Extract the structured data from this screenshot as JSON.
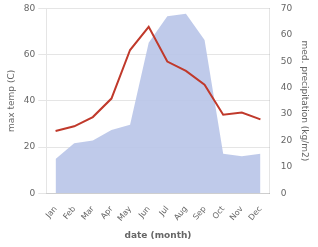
{
  "chart_data": {
    "type": "line",
    "categories": [
      "Jan",
      "Feb",
      "Mar",
      "Apr",
      "May",
      "Jun",
      "Jul",
      "Aug",
      "Sep",
      "Oct",
      "Nov",
      "Dec"
    ],
    "series": [
      {
        "type": "area",
        "axis": "y2",
        "color": "#b8c4e8",
        "values": [
          13,
          19,
          20,
          24,
          26,
          57,
          67,
          68,
          58,
          15,
          14,
          15
        ]
      },
      {
        "type": "line",
        "color": "#c0392b",
        "values": [
          27,
          29,
          33,
          41,
          62,
          72,
          57,
          53,
          47,
          34,
          35,
          32
        ]
      }
    ],
    "xlabel": "date (month)",
    "ylabel": "max temp (C)",
    "y2label": "med. precipitation (kg/m2)",
    "ylim": [
      0,
      80
    ],
    "yticks": [
      0,
      20,
      40,
      60,
      80
    ],
    "y2lim": [
      0,
      70
    ],
    "y2ticks": [
      0,
      10,
      20,
      30,
      40,
      50,
      60,
      70
    ],
    "grid": "y"
  }
}
